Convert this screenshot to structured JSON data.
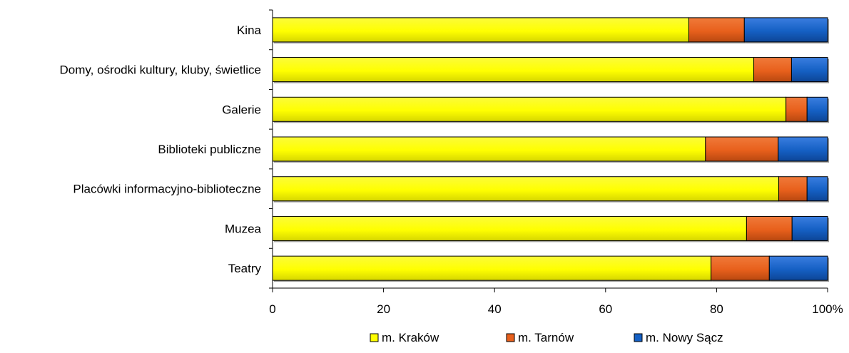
{
  "chart_data": {
    "type": "bar",
    "orientation": "horizontal",
    "stacked": "percent",
    "categories": [
      "Kina",
      "Domy, ośrodki kultury, kluby, świetlice",
      "Galerie",
      "Biblioteki publiczne",
      "Placówki informacyjno-biblioteczne",
      "Muzea",
      "Teatry"
    ],
    "series": [
      {
        "name": "m. Kraków",
        "color": "#ffff00",
        "values": [
          75,
          86.7,
          92.5,
          78,
          91.2,
          85.4,
          79
        ]
      },
      {
        "name": "m. Tarnów",
        "color": "#e8601c",
        "values": [
          10,
          6.8,
          3.8,
          13.1,
          5.1,
          8.2,
          10.5
        ]
      },
      {
        "name": "m. Nowy Sącz",
        "color": "#1560c4",
        "values": [
          15,
          6.5,
          3.7,
          8.9,
          3.7,
          6.4,
          10.5
        ]
      }
    ],
    "x_ticks": [
      "0",
      "20",
      "40",
      "60",
      "80",
      "100%"
    ],
    "xlim": [
      0,
      100
    ],
    "grid": false,
    "legend_position": "bottom",
    "title": "",
    "xlabel": "",
    "ylabel": ""
  }
}
